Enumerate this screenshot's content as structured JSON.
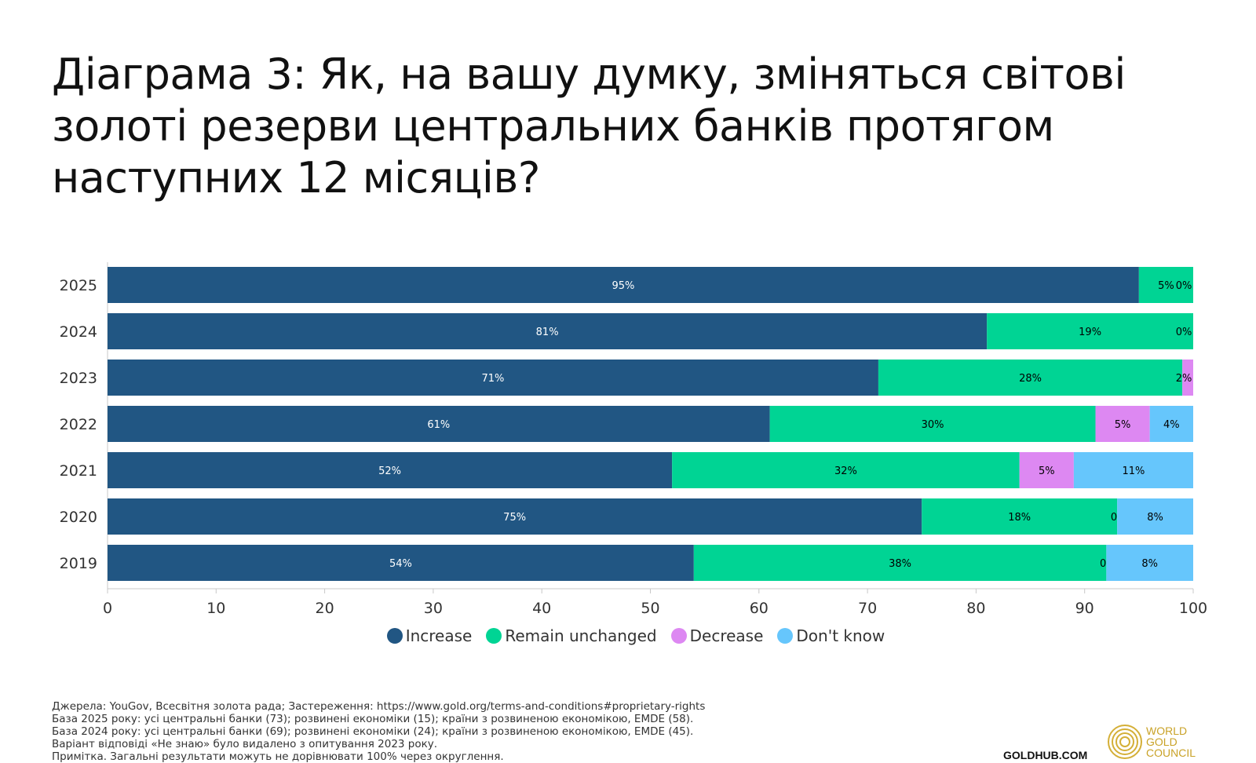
{
  "title_lines": [
    "Діаграма 3: Як, на вашу думку, зміняться світові",
    "золоті резерви центральних банків протягом",
    "наступних 12 місяців?"
  ],
  "chart_data": {
    "type": "bar",
    "orientation": "horizontal",
    "stacked": true,
    "categories": [
      "2025",
      "2024",
      "2023",
      "2022",
      "2021",
      "2020",
      "2019"
    ],
    "series": [
      {
        "name": "Increase",
        "color": "#215683",
        "label_color": "#ffffff",
        "values": [
          95,
          81,
          71,
          61,
          52,
          75,
          54
        ],
        "labels": [
          "95%",
          "81%",
          "71%",
          "61%",
          "52%",
          "75%",
          "54%"
        ]
      },
      {
        "name": "Remain unchanged",
        "color": "#00d494",
        "label_color": "#000000",
        "values": [
          5,
          19,
          28,
          30,
          32,
          18,
          38
        ],
        "labels": [
          "5%",
          "19%",
          "28%",
          "30%",
          "32%",
          "18%",
          "38%"
        ]
      },
      {
        "name": "Decrease",
        "color": "#dd88f2",
        "label_color": "#000000",
        "values": [
          0,
          0,
          2,
          5,
          5,
          0,
          0
        ],
        "labels": [
          "0%",
          "0%",
          "2%",
          "5%",
          "5%",
          "0%",
          "0%"
        ]
      },
      {
        "name": "Don't know",
        "color": "#66c6fc",
        "label_color": "#000000",
        "values": [
          0,
          0,
          0,
          4,
          11,
          8,
          8
        ],
        "labels": [
          "",
          "",
          "",
          "4%",
          "11%",
          "8%",
          "8%"
        ]
      }
    ],
    "xlim": [
      0,
      100
    ],
    "xticks": [
      "0",
      "10",
      "20",
      "30",
      "40",
      "50",
      "60",
      "70",
      "80",
      "90",
      "100"
    ],
    "legend_position": "bottom-center",
    "grid": false
  },
  "footnotes": [
    "Джерела: YouGov, Всесвітня золота рада; Застереження: https://www.gold.org/terms-and-conditions#proprietary-rights",
    "База 2025 року: усі центральні банки (73); розвинені економіки (15); країни з розвиненою економікою, EMDE (58).",
    "База 2024 року: усі центральні банки (69); розвинені економіки (24); країни з розвиненою економікою, EMDE (45).",
    "Варіант відповіді «Не знаю» було видалено з опитування 2023 року.",
    "Примітка. Загальні результати можуть не дорівнювати 100% через округлення."
  ],
  "goldhub": "GOLDHUB.COM",
  "logo_lines": [
    "WORLD",
    "GOLD",
    "COUNCIL"
  ],
  "logo_color": "#c9a227"
}
